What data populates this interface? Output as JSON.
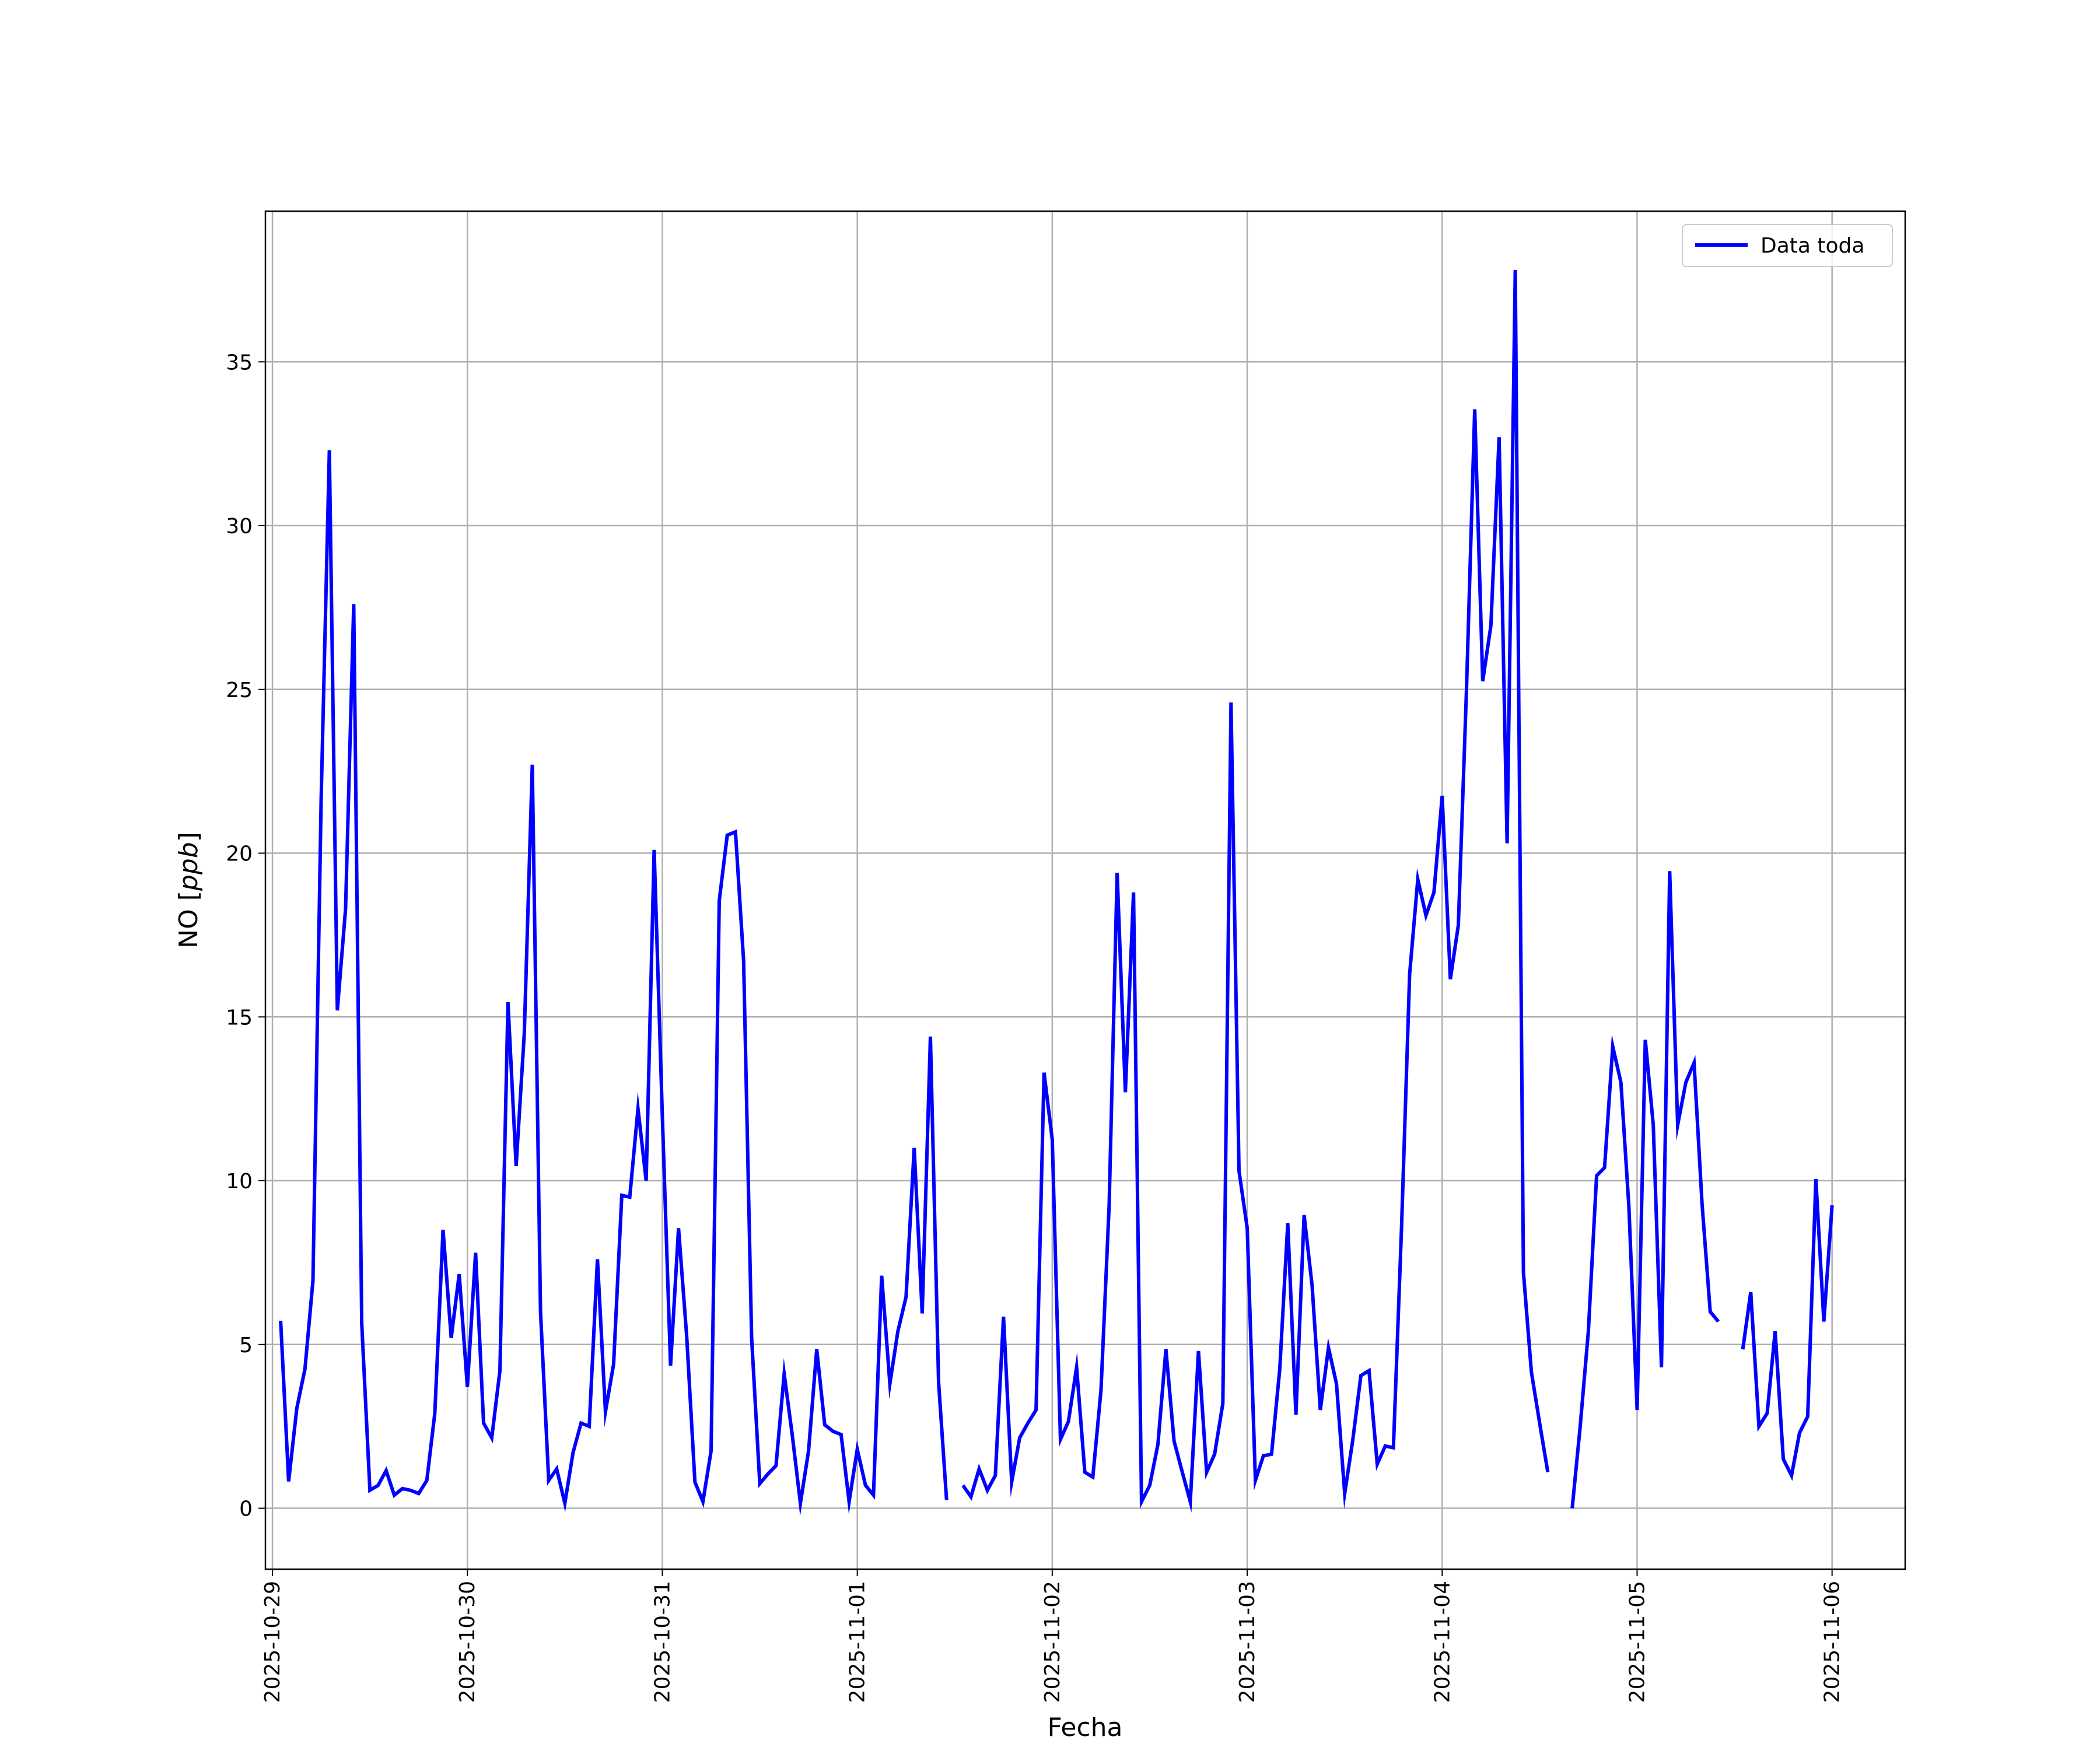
{
  "chart_data": {
    "type": "line",
    "title": "",
    "xlabel": "Fecha",
    "ylabel": "NO [ppb]",
    "ylabel_parts": {
      "plain": "NO [",
      "italic": "ppb",
      "close": "]"
    },
    "x_tick_labels": [
      "2025-10-29",
      "2025-10-30",
      "2025-10-31",
      "2025-11-01",
      "2025-11-02",
      "2025-11-03",
      "2025-11-04",
      "2025-11-05",
      "2025-11-06"
    ],
    "y_ticks": [
      0,
      5,
      10,
      15,
      20,
      25,
      30,
      35
    ],
    "xlim": [
      -0.036,
      8.375
    ],
    "ylim": [
      -1.86,
      39.6
    ],
    "grid": true,
    "legend": {
      "entries": [
        "Data toda"
      ],
      "position": "top-right"
    },
    "series": [
      {
        "name": "Data toda",
        "color": "#0000ff",
        "x_unit": "days since 2025-10-29 00:00",
        "segments": [
          [
            [
              0.042,
              5.72
            ],
            [
              0.083,
              0.82
            ],
            [
              0.125,
              3.05
            ],
            [
              0.167,
              4.25
            ],
            [
              0.208,
              6.95
            ],
            [
              0.25,
              21.7
            ],
            [
              0.292,
              32.3
            ],
            [
              0.333,
              15.2
            ],
            [
              0.375,
              18.3
            ],
            [
              0.417,
              27.6
            ],
            [
              0.458,
              5.65
            ],
            [
              0.5,
              0.55
            ],
            [
              0.542,
              0.7
            ],
            [
              0.583,
              1.15
            ],
            [
              0.625,
              0.4
            ],
            [
              0.667,
              0.6
            ],
            [
              0.708,
              0.55
            ],
            [
              0.75,
              0.45
            ],
            [
              0.792,
              0.85
            ],
            [
              0.833,
              2.9
            ],
            [
              0.875,
              8.5
            ],
            [
              0.917,
              5.2
            ],
            [
              0.958,
              7.15
            ],
            [
              1.0,
              3.7
            ],
            [
              1.042,
              7.8
            ],
            [
              1.083,
              2.6
            ],
            [
              1.125,
              2.15
            ],
            [
              1.167,
              4.2
            ],
            [
              1.208,
              15.45
            ],
            [
              1.25,
              10.45
            ],
            [
              1.292,
              14.5
            ],
            [
              1.333,
              22.7
            ],
            [
              1.375,
              6.0
            ],
            [
              1.417,
              0.85
            ],
            [
              1.458,
              1.2
            ],
            [
              1.5,
              0.15
            ],
            [
              1.542,
              1.7
            ],
            [
              1.583,
              2.6
            ],
            [
              1.625,
              2.5
            ],
            [
              1.667,
              7.6
            ],
            [
              1.708,
              2.95
            ],
            [
              1.75,
              4.4
            ],
            [
              1.792,
              9.55
            ],
            [
              1.833,
              9.5
            ],
            [
              1.875,
              12.2
            ],
            [
              1.917,
              10.0
            ],
            [
              1.958,
              20.1
            ],
            [
              2.0,
              12.0
            ],
            [
              2.042,
              4.35
            ],
            [
              2.083,
              8.55
            ],
            [
              2.125,
              5.25
            ],
            [
              2.167,
              0.8
            ],
            [
              2.208,
              0.2
            ],
            [
              2.25,
              1.75
            ],
            [
              2.292,
              18.55
            ],
            [
              2.333,
              20.55
            ],
            [
              2.375,
              20.65
            ],
            [
              2.417,
              16.7
            ],
            [
              2.458,
              5.2
            ],
            [
              2.5,
              0.75
            ],
            [
              2.542,
              1.05
            ],
            [
              2.583,
              1.3
            ],
            [
              2.625,
              4.1
            ],
            [
              2.667,
              2.2
            ],
            [
              2.708,
              0.15
            ],
            [
              2.75,
              1.75
            ],
            [
              2.792,
              4.85
            ],
            [
              2.833,
              2.55
            ],
            [
              2.875,
              2.35
            ],
            [
              2.917,
              2.25
            ],
            [
              2.958,
              0.2
            ],
            [
              3.0,
              1.8
            ],
            [
              3.042,
              0.7
            ],
            [
              3.083,
              0.4
            ],
            [
              3.125,
              7.1
            ],
            [
              3.167,
              3.8
            ],
            [
              3.208,
              5.4
            ],
            [
              3.25,
              6.45
            ],
            [
              3.292,
              11.0
            ],
            [
              3.333,
              5.95
            ],
            [
              3.375,
              14.4
            ],
            [
              3.417,
              3.85
            ],
            [
              3.458,
              0.25
            ]
          ],
          [
            [
              3.542,
              0.7
            ],
            [
              3.583,
              0.35
            ],
            [
              3.625,
              1.2
            ],
            [
              3.667,
              0.55
            ],
            [
              3.708,
              1.0
            ],
            [
              3.75,
              5.85
            ],
            [
              3.792,
              0.8
            ],
            [
              3.833,
              2.15
            ],
            [
              3.875,
              2.6
            ],
            [
              3.917,
              3.0
            ],
            [
              3.958,
              13.3
            ],
            [
              4.0,
              11.25
            ],
            [
              4.042,
              2.1
            ],
            [
              4.083,
              2.65
            ],
            [
              4.125,
              4.3
            ],
            [
              4.167,
              1.1
            ],
            [
              4.208,
              0.95
            ],
            [
              4.25,
              3.6
            ],
            [
              4.292,
              9.25
            ],
            [
              4.333,
              19.4
            ],
            [
              4.375,
              12.7
            ],
            [
              4.417,
              18.8
            ],
            [
              4.458,
              0.2
            ],
            [
              4.5,
              0.7
            ],
            [
              4.542,
              1.95
            ],
            [
              4.583,
              4.85
            ],
            [
              4.625,
              2.05
            ],
            [
              4.667,
              1.1
            ],
            [
              4.708,
              0.2
            ],
            [
              4.75,
              4.8
            ],
            [
              4.792,
              1.1
            ],
            [
              4.833,
              1.65
            ],
            [
              4.875,
              3.2
            ],
            [
              4.917,
              24.6
            ],
            [
              4.958,
              10.3
            ],
            [
              5.0,
              8.55
            ],
            [
              5.042,
              0.85
            ],
            [
              5.083,
              1.6
            ],
            [
              5.125,
              1.65
            ],
            [
              5.167,
              4.25
            ],
            [
              5.208,
              8.7
            ],
            [
              5.25,
              2.85
            ],
            [
              5.292,
              8.95
            ],
            [
              5.333,
              6.8
            ],
            [
              5.375,
              3.0
            ],
            [
              5.417,
              4.9
            ],
            [
              5.458,
              3.8
            ],
            [
              5.5,
              0.45
            ],
            [
              5.542,
              2.1
            ],
            [
              5.583,
              4.05
            ],
            [
              5.625,
              4.2
            ],
            [
              5.667,
              1.35
            ],
            [
              5.708,
              1.9
            ],
            [
              5.75,
              1.85
            ],
            [
              5.792,
              8.6
            ],
            [
              5.833,
              16.3
            ],
            [
              5.875,
              19.2
            ],
            [
              5.917,
              18.1
            ],
            [
              5.958,
              18.8
            ],
            [
              6.0,
              21.75
            ],
            [
              6.042,
              16.15
            ],
            [
              6.083,
              17.8
            ],
            [
              6.125,
              25.0
            ],
            [
              6.167,
              33.55
            ],
            [
              6.208,
              25.25
            ],
            [
              6.25,
              26.95
            ],
            [
              6.292,
              32.7
            ],
            [
              6.333,
              20.3
            ],
            [
              6.375,
              37.8
            ],
            [
              6.417,
              7.2
            ],
            [
              6.458,
              4.15
            ],
            [
              6.5,
              2.6
            ],
            [
              6.542,
              1.1
            ]
          ],
          [
            [
              6.667,
              0.0
            ],
            [
              6.708,
              2.5
            ],
            [
              6.75,
              5.4
            ],
            [
              6.792,
              10.15
            ],
            [
              6.833,
              10.4
            ],
            [
              6.875,
              14.1
            ],
            [
              6.917,
              13.0
            ],
            [
              6.958,
              9.2
            ],
            [
              7.0,
              3.0
            ],
            [
              7.042,
              14.3
            ],
            [
              7.083,
              11.7
            ],
            [
              7.125,
              4.3
            ],
            [
              7.167,
              19.45
            ],
            [
              7.208,
              11.7
            ],
            [
              7.25,
              13.0
            ],
            [
              7.292,
              13.6
            ],
            [
              7.333,
              9.3
            ],
            [
              7.375,
              6.0
            ],
            [
              7.417,
              5.7
            ]
          ],
          [
            [
              7.542,
              4.85
            ],
            [
              7.583,
              6.6
            ],
            [
              7.625,
              2.5
            ],
            [
              7.667,
              2.9
            ],
            [
              7.708,
              5.4
            ],
            [
              7.75,
              1.5
            ],
            [
              7.792,
              1.0
            ],
            [
              7.833,
              2.3
            ],
            [
              7.875,
              2.8
            ],
            [
              7.917,
              10.05
            ],
            [
              7.958,
              5.7
            ],
            [
              8.0,
              9.25
            ]
          ]
        ]
      }
    ]
  }
}
